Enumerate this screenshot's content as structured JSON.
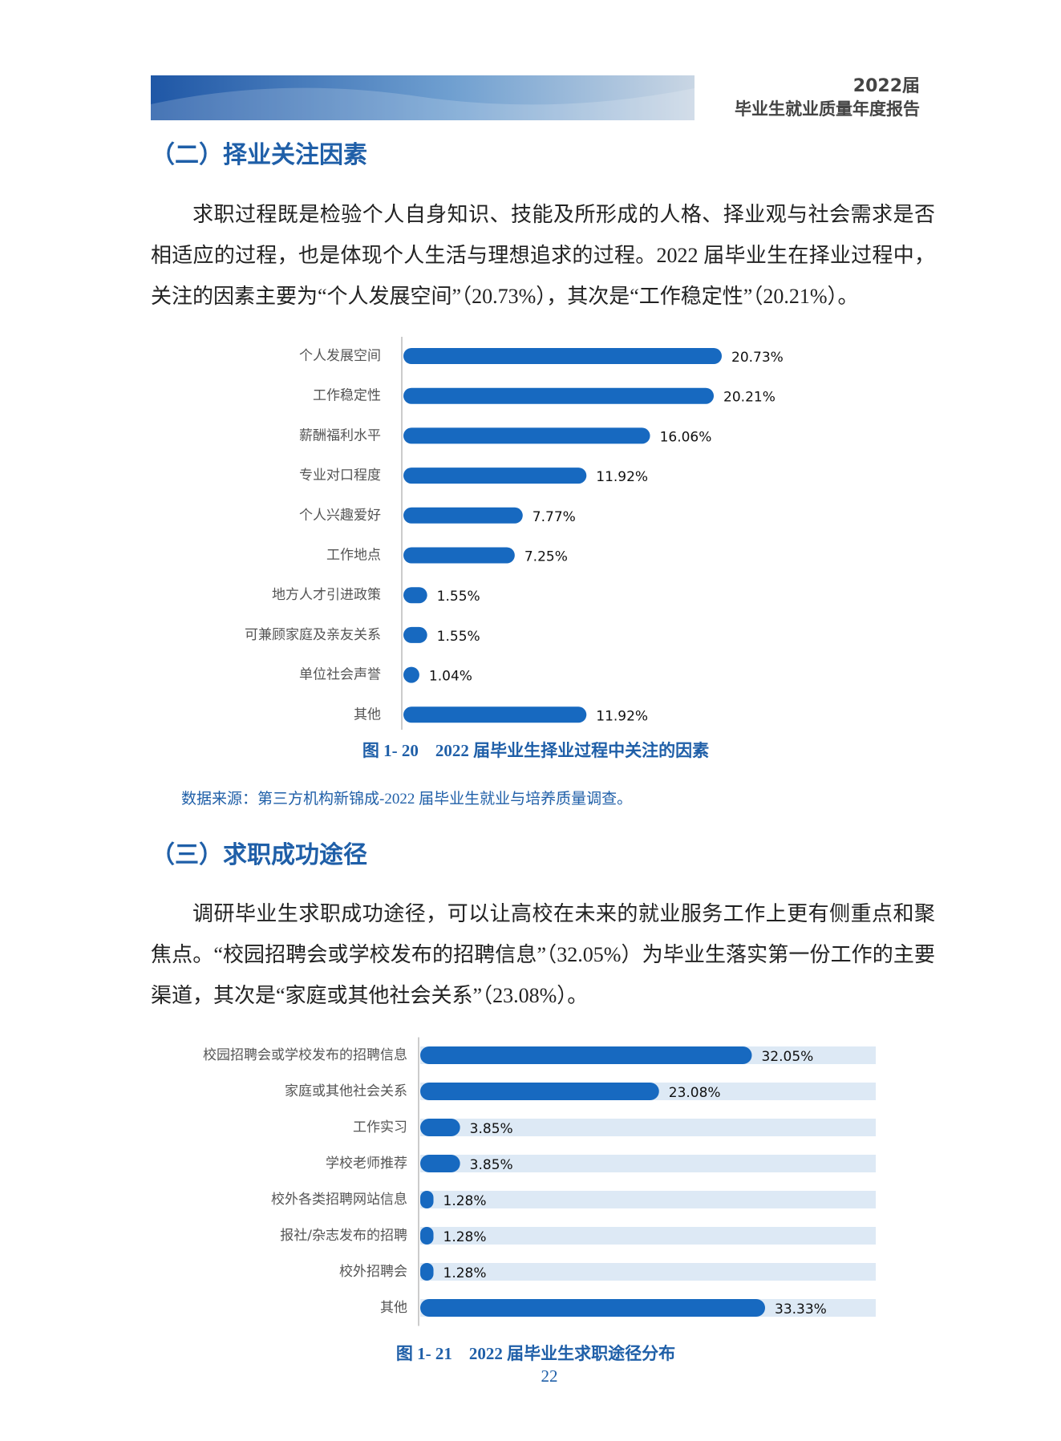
{
  "header": {
    "year": "2022届",
    "title": "毕业生就业质量年度报告"
  },
  "sections": [
    {
      "heading": "（二）择业关注因素",
      "paragraph": "求职过程既是检验个人自身知识、技能及所形成的人格、择业观与社会需求是否相适应的过程，也是体现个人生活与理想追求的过程。2022 届毕业生在择业过程中， 关注的因素主要为“个人发展空间”（20.73%），其次是“工作稳定性”（20.21%）。",
      "caption": "图 1- 20　2022 届毕业生择业过程中关注的因素",
      "source": "数据来源：第三方机构新锦成-2022 届毕业生就业与培养质量调查。"
    },
    {
      "heading": "（三）求职成功途径",
      "paragraph": "调研毕业生求职成功途径，可以让高校在未来的就业服务工作上更有侧重点和聚焦点。“校园招聘会或学校发布的招聘信息”（32.05%）为毕业生落实第一份工作的主要渠道，其次是“家庭或其他社会关系”（23.08%）。",
      "caption": "图 1- 21　2022 届毕业生求职途径分布"
    }
  ],
  "page_number": "22",
  "chart_data": [
    {
      "type": "bar",
      "orientation": "horizontal",
      "color": "#1769c0",
      "categories": [
        "个人发展空间",
        "工作稳定性",
        "薪酬福利水平",
        "专业对口程度",
        "个人兴趣爱好",
        "工作地点",
        "地方人才引进政策",
        "可兼顾家庭及亲友关系",
        "单位社会声誉",
        "其他"
      ],
      "values": [
        20.73,
        20.21,
        16.06,
        11.92,
        7.77,
        7.25,
        1.55,
        1.55,
        1.04,
        11.92
      ],
      "value_labels": [
        "20.73%",
        "20.21%",
        "16.06%",
        "11.92%",
        "7.77%",
        "7.25%",
        "1.55%",
        "1.55%",
        "1.04%",
        "11.92%"
      ]
    },
    {
      "type": "bar",
      "orientation": "horizontal",
      "color": "#1769c0",
      "track_color": "#dde9f5",
      "categories": [
        "校园招聘会或学校发布的招聘信息",
        "家庭或其他社会关系",
        "工作实习",
        "学校老师推荐",
        "校外各类招聘网站信息",
        "报社/杂志发布的招聘",
        "校外招聘会",
        "其他"
      ],
      "values": [
        32.05,
        23.08,
        3.85,
        3.85,
        1.28,
        1.28,
        1.28,
        33.33
      ],
      "value_labels": [
        "32.05%",
        "23.08%",
        "3.85%",
        "3.85%",
        "1.28%",
        "1.28%",
        "1.28%",
        "33.33%"
      ]
    }
  ]
}
